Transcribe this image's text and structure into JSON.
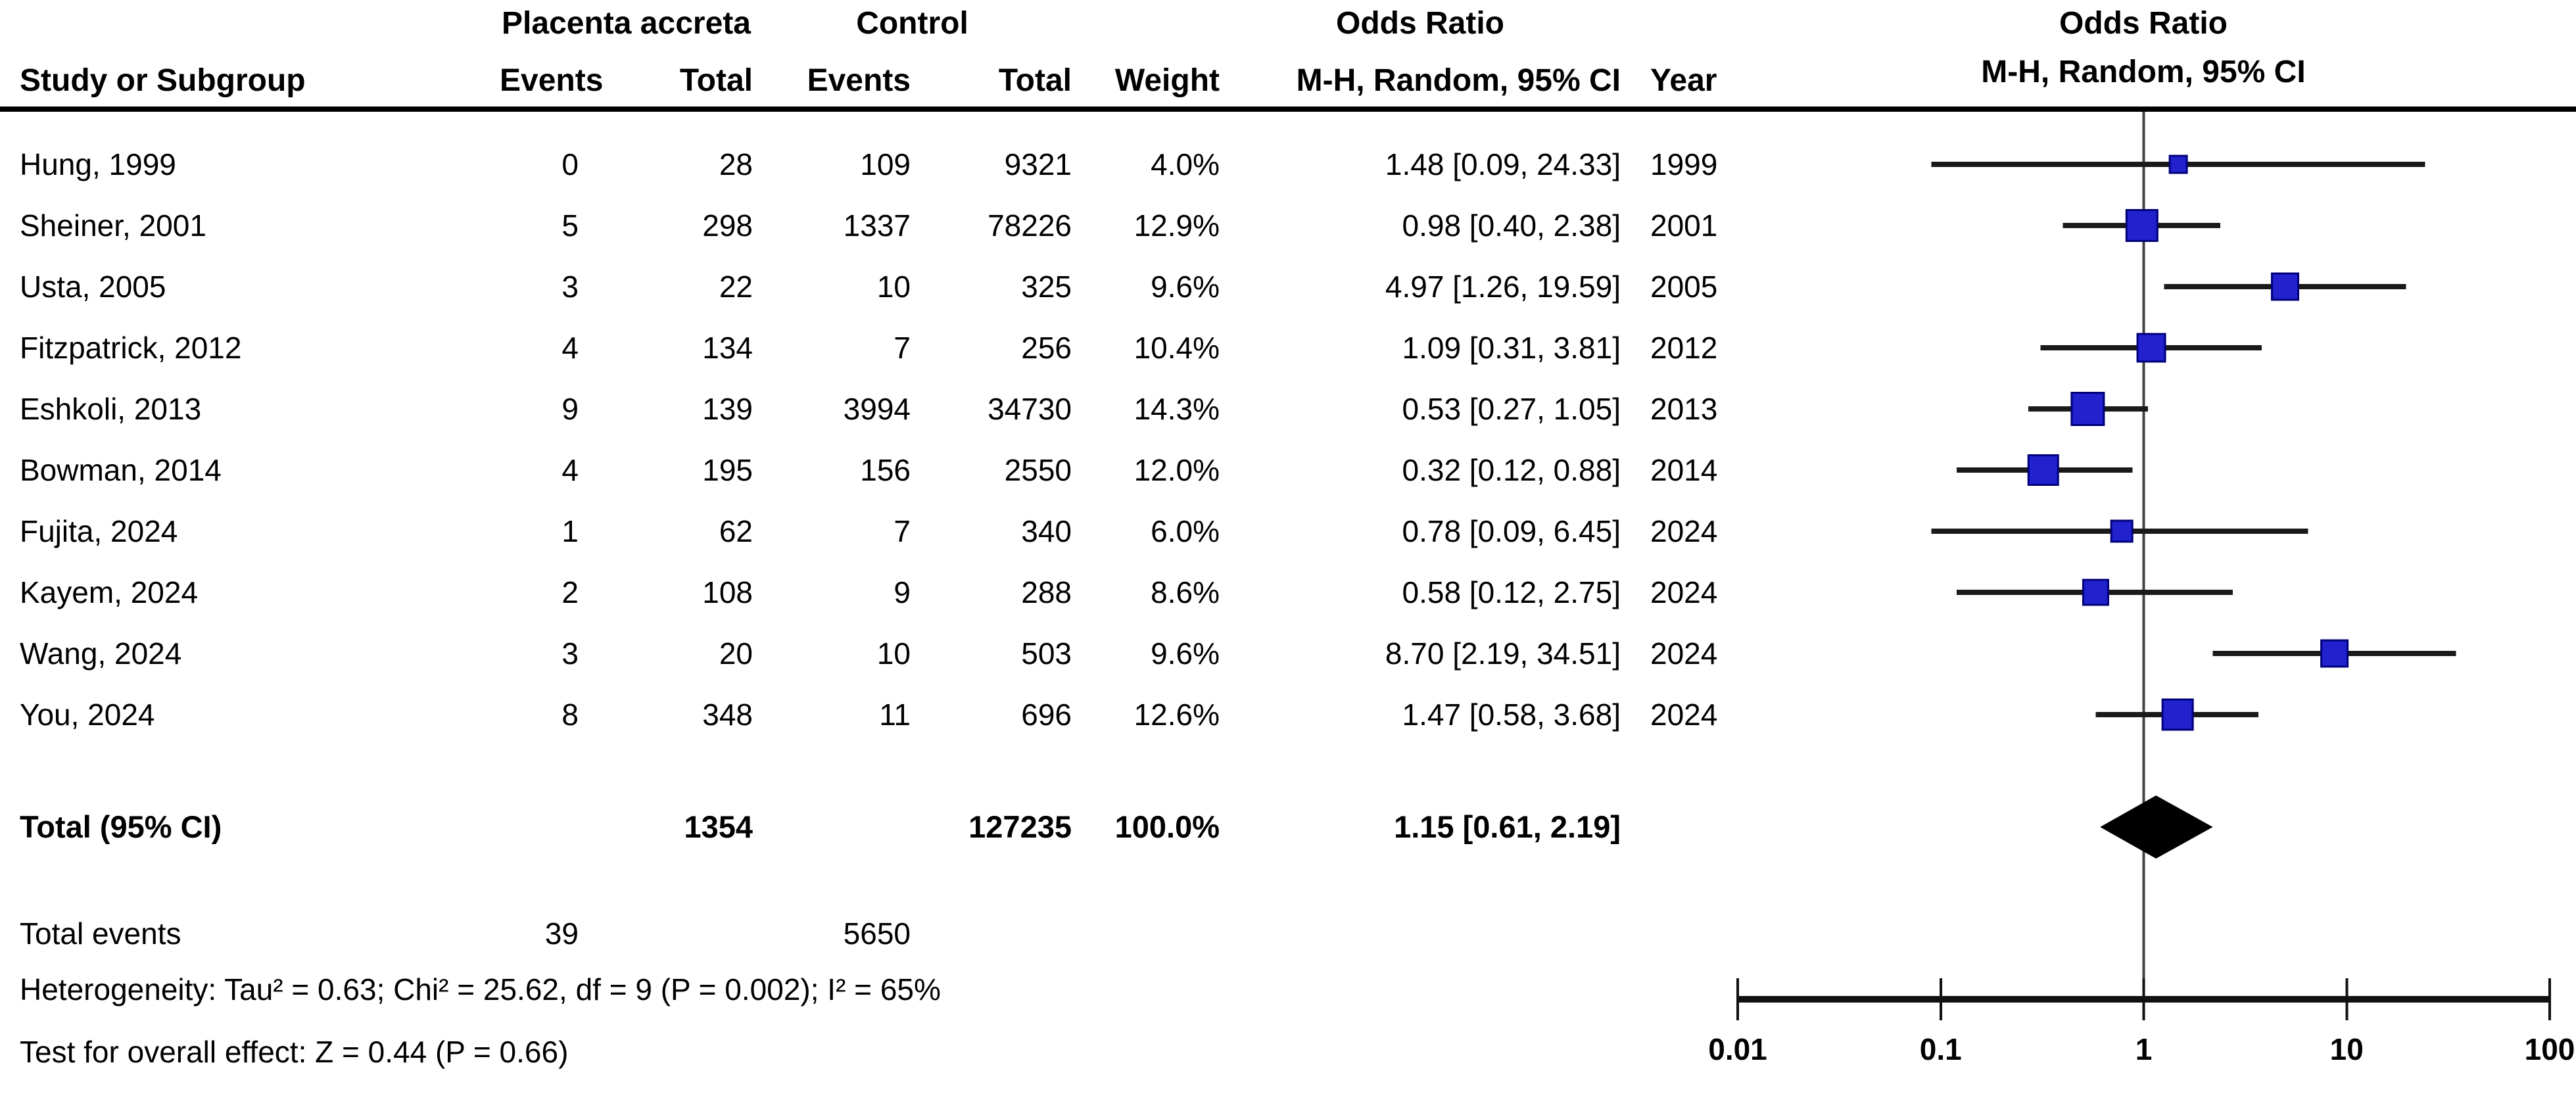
{
  "header": {
    "group_accreta": "Placenta accreta",
    "group_control": "Control",
    "or_left": "Odds Ratio",
    "or_right": "Odds Ratio",
    "cols": {
      "study": "Study or Subgroup",
      "events1": "Events",
      "total1": "Total",
      "events2": "Events",
      "total2": "Total",
      "weight": "Weight",
      "ci": "M-H, Random, 95% CI",
      "year": "Year",
      "ci_right": "M-H, Random, 95% CI"
    }
  },
  "totals": {
    "label": "Total (95% CI)",
    "total1": "1354",
    "total2": "127235",
    "weight": "100.0%",
    "ci_text": "1.15 [0.61, 2.19]"
  },
  "footer": {
    "total_events_label": "Total events",
    "events1": "39",
    "events2": "5650",
    "heterogeneity": "Heterogeneity: Tau² = 0.63; Chi² = 25.62, df = 9 (P = 0.002); I² = 65%",
    "overall_test": "Test for overall effect: Z = 0.44 (P = 0.66)"
  },
  "colors": {
    "marker_fill": "#2121CE",
    "marker_border": "#00007A",
    "ci_line": "#1a1a1a",
    "diamond": "#000000",
    "axis": "#111111",
    "ref_line": "#444444"
  },
  "chart_data": {
    "type": "forest",
    "effect_measure": "Odds Ratio, M-H, Random, 95% CI",
    "x_axis": {
      "scale": "log10",
      "ticks": [
        0.01,
        0.1,
        1,
        10,
        100
      ],
      "tick_labels": [
        "0.01",
        "0.1",
        "1",
        "10",
        "100"
      ],
      "ref_value": 1
    },
    "studies": [
      {
        "name": "Hung, 1999",
        "events": "0",
        "total": "28",
        "control_events": "109",
        "control_total": "9321",
        "weight": 4.0,
        "weight_text": "4.0%",
        "or": 1.48,
        "ci_low": 0.09,
        "ci_high": 24.33,
        "ci_text": "1.48 [0.09, 24.33]",
        "year": "1999"
      },
      {
        "name": "Sheiner, 2001",
        "events": "5",
        "total": "298",
        "control_events": "1337",
        "control_total": "78226",
        "weight": 12.9,
        "weight_text": "12.9%",
        "or": 0.98,
        "ci_low": 0.4,
        "ci_high": 2.38,
        "ci_text": "0.98 [0.40, 2.38]",
        "year": "2001"
      },
      {
        "name": "Usta, 2005",
        "events": "3",
        "total": "22",
        "control_events": "10",
        "control_total": "325",
        "weight": 9.6,
        "weight_text": "9.6%",
        "or": 4.97,
        "ci_low": 1.26,
        "ci_high": 19.59,
        "ci_text": "4.97 [1.26, 19.59]",
        "year": "2005"
      },
      {
        "name": "Fitzpatrick, 2012",
        "events": "4",
        "total": "134",
        "control_events": "7",
        "control_total": "256",
        "weight": 10.4,
        "weight_text": "10.4%",
        "or": 1.09,
        "ci_low": 0.31,
        "ci_high": 3.81,
        "ci_text": "1.09 [0.31, 3.81]",
        "year": "2012"
      },
      {
        "name": "Eshkoli, 2013",
        "events": "9",
        "total": "139",
        "control_events": "3994",
        "control_total": "34730",
        "weight": 14.3,
        "weight_text": "14.3%",
        "or": 0.53,
        "ci_low": 0.27,
        "ci_high": 1.05,
        "ci_text": "0.53 [0.27, 1.05]",
        "year": "2013"
      },
      {
        "name": "Bowman, 2014",
        "events": "4",
        "total": "195",
        "control_events": "156",
        "control_total": "2550",
        "weight": 12.0,
        "weight_text": "12.0%",
        "or": 0.32,
        "ci_low": 0.12,
        "ci_high": 0.88,
        "ci_text": "0.32 [0.12, 0.88]",
        "year": "2014"
      },
      {
        "name": "Fujita, 2024",
        "events": "1",
        "total": "62",
        "control_events": "7",
        "control_total": "340",
        "weight": 6.0,
        "weight_text": "6.0%",
        "or": 0.78,
        "ci_low": 0.09,
        "ci_high": 6.45,
        "ci_text": "0.78 [0.09, 6.45]",
        "year": "2024"
      },
      {
        "name": "Kayem, 2024",
        "events": "2",
        "total": "108",
        "control_events": "9",
        "control_total": "288",
        "weight": 8.6,
        "weight_text": "8.6%",
        "or": 0.58,
        "ci_low": 0.12,
        "ci_high": 2.75,
        "ci_text": "0.58 [0.12, 2.75]",
        "year": "2024"
      },
      {
        "name": "Wang, 2024",
        "events": "3",
        "total": "20",
        "control_events": "10",
        "control_total": "503",
        "weight": 9.6,
        "weight_text": "9.6%",
        "or": 8.7,
        "ci_low": 2.19,
        "ci_high": 34.51,
        "ci_text": "8.70 [2.19, 34.51]",
        "year": "2024"
      },
      {
        "name": "You, 2024",
        "events": "8",
        "total": "348",
        "control_events": "11",
        "control_total": "696",
        "weight": 12.6,
        "weight_text": "12.6%",
        "or": 1.47,
        "ci_low": 0.58,
        "ci_high": 3.68,
        "ci_text": "1.47 [0.58, 3.68]",
        "year": "2024"
      }
    ],
    "pooled": {
      "or": 1.15,
      "ci_low": 0.61,
      "ci_high": 2.19
    }
  }
}
